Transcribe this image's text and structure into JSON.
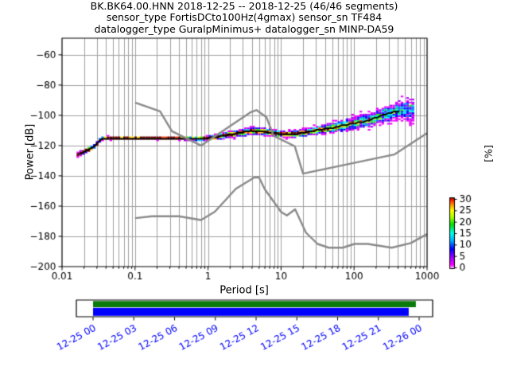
{
  "title": {
    "line1": "BK.BK64.00.HNN   2018-12-25 -- 2018-12-25  (46/46 segments)",
    "line2": "sensor_type FortisDCto100Hz(4gmax) sensor_sn TF484",
    "line3": "datalogger_type GuralpMinimus+ datalogger_sn MINP-DA59"
  },
  "chart_data": {
    "type": "heatmap",
    "subtype": "ppsd-probability-histogram",
    "xlabel": "Period [s]",
    "ylabel": "Power [dB]",
    "xscale": "log",
    "xlim": [
      0.01,
      1000
    ],
    "ylim": [
      -200,
      -49
    ],
    "xticks": [
      0.01,
      0.1,
      1,
      10,
      100,
      1000
    ],
    "xtick_labels": [
      "0.01",
      "0.1",
      "1",
      "10",
      "100",
      "1000"
    ],
    "yticks": [
      -60,
      -80,
      -100,
      -120,
      -140,
      -160,
      -180,
      -200
    ],
    "ytick_labels": [
      "−60",
      "−80",
      "−100",
      "−120",
      "−140",
      "−160",
      "−180",
      "−200"
    ],
    "grid_on": true,
    "grid_color": "#9f9f9f",
    "noise_model_color": "#8a8a8a",
    "colorbar": {
      "label": "[%]",
      "ticks": [
        0,
        5,
        10,
        15,
        20,
        25,
        30
      ],
      "max_percentage": 30,
      "stops": [
        [
          0,
          "#ffffff"
        ],
        [
          0.055,
          "#ff00ff"
        ],
        [
          0.17,
          "#9000ff"
        ],
        [
          0.28,
          "#0000ff"
        ],
        [
          0.4,
          "#00b4ff"
        ],
        [
          0.5,
          "#00ffee"
        ],
        [
          0.62,
          "#00e000"
        ],
        [
          0.73,
          "#b4ff00"
        ],
        [
          0.82,
          "#ffff00"
        ],
        [
          0.9,
          "#ff8c00"
        ],
        [
          0.96,
          "#ff1e00"
        ],
        [
          1,
          "#6e0000"
        ]
      ]
    },
    "histogram": {
      "n_segments": 46,
      "db_bin_width": 1,
      "period_step_octaves": 0.125,
      "period_range": [
        0.0165,
        700
      ],
      "mean_line_max_period": 450,
      "seed": 11
    },
    "psd_mean": {
      "periods": [
        0.0165,
        0.019,
        0.021,
        0.024,
        0.027,
        0.03,
        0.033,
        0.037,
        0.05,
        0.1,
        0.3,
        0.55,
        0.8,
        1.0,
        1.4,
        2.0,
        3.0,
        4.0,
        5.0,
        6.5,
        8.0,
        10,
        13,
        17,
        22,
        30,
        40,
        55,
        75,
        100,
        130,
        170,
        210,
        260,
        320,
        400,
        470,
        560,
        700
      ],
      "db": [
        -126,
        -124.5,
        -123.5,
        -122.5,
        -121,
        -119,
        -116.5,
        -115.2,
        -115.1,
        -115.1,
        -115.1,
        -115.3,
        -115.4,
        -115.0,
        -114.0,
        -112.6,
        -111.2,
        -110.4,
        -110.4,
        -111.1,
        -111.8,
        -112.2,
        -112.4,
        -112.1,
        -111.3,
        -110.0,
        -109.0,
        -107.8,
        -106.4,
        -105.2,
        -104.3,
        -103.2,
        -101.0,
        -99.6,
        -98.3,
        -97.3,
        -96.7,
        -96.5,
        -96.3
      ]
    },
    "psd_spread_std": {
      "periods": [
        0.0165,
        0.04,
        0.1,
        0.5,
        1,
        2,
        4,
        7,
        10,
        15,
        25,
        50,
        100,
        200,
        350,
        500,
        700
      ],
      "std": [
        0.55,
        0.35,
        0.3,
        0.35,
        0.5,
        0.9,
        1.1,
        0.9,
        0.8,
        0.9,
        1.1,
        1.4,
        1.8,
        2.2,
        2.6,
        3.0,
        3.4
      ]
    },
    "noise_models": {
      "nhnm": {
        "periods": [
          0.1,
          0.22,
          0.32,
          0.8,
          3.8,
          4.6,
          6.3,
          7.9,
          15.4,
          20.0,
          354.8,
          1000.0
        ],
        "db": [
          -91.5,
          -97.4,
          -110.5,
          -120.0,
          -98.0,
          -96.5,
          -101.2,
          -113.5,
          -120.4,
          -138.5,
          -125.9,
          -111.8
        ]
      },
      "nlnm": {
        "periods": [
          0.1,
          0.17,
          0.4,
          0.8,
          1.24,
          2.4,
          4.3,
          5.0,
          6.0,
          10.0,
          12.0,
          15.6,
          21.9,
          31.6,
          45.0,
          70.0,
          101.0,
          154.0,
          328.0,
          600.0,
          1000.0
        ],
        "db": [
          -168.0,
          -166.7,
          -166.7,
          -169.2,
          -163.7,
          -148.6,
          -141.1,
          -141.1,
          -149.0,
          -163.8,
          -166.2,
          -162.1,
          -177.5,
          -185.0,
          -187.5,
          -187.5,
          -185.0,
          -185.0,
          -187.5,
          -184.4,
          -178.5
        ]
      }
    }
  },
  "timeline": {
    "tick_labels": [
      "12-25 00",
      "12-25 03",
      "12-25 06",
      "12-25 09",
      "12-25 12",
      "12-25 15",
      "12-25 18",
      "12-25 21",
      "12-26 00"
    ],
    "coverage": {
      "color": "#0a7a0a",
      "start_frac": 0.0,
      "end_frac": 0.99
    },
    "segments": {
      "color": "#0000ff",
      "start_frac": 0.0,
      "end_frac": 0.968
    }
  }
}
